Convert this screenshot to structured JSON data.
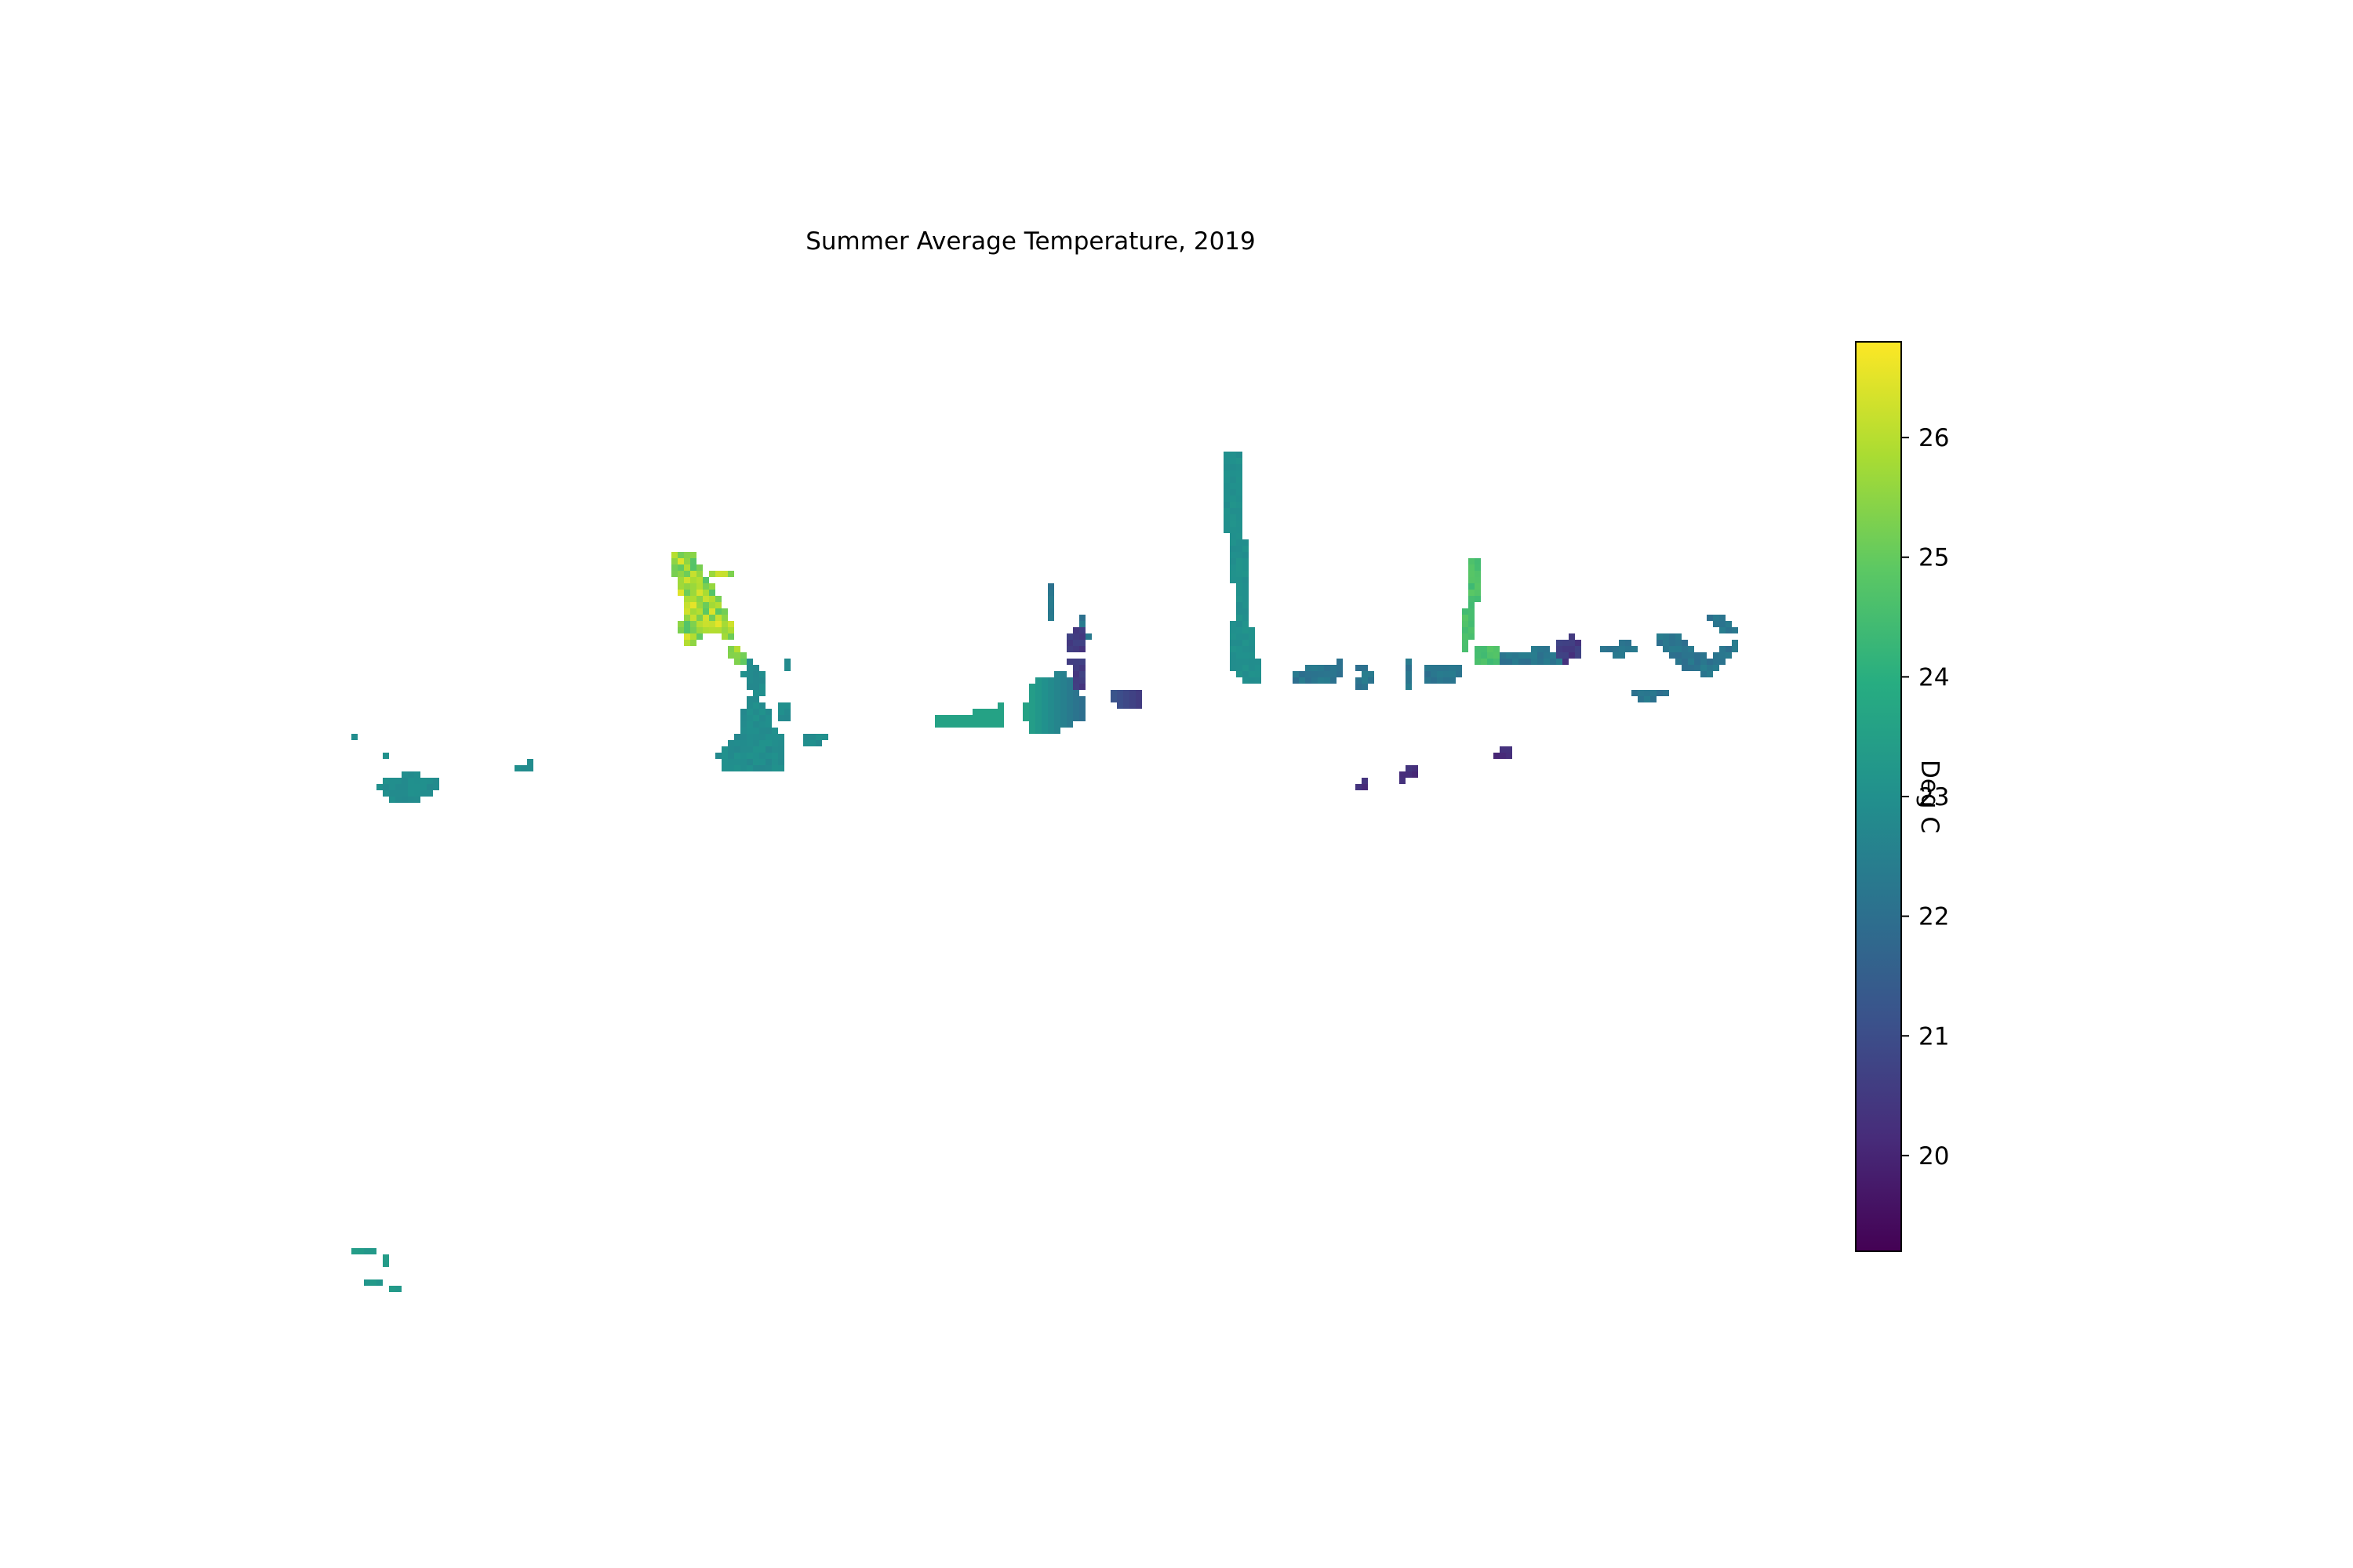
{
  "chart_data": {
    "type": "heatmap",
    "title": "Summer Average Temperature, 2019",
    "xlabel": "",
    "ylabel": "",
    "axes_visible": false,
    "colormap": "viridis",
    "colorbar": {
      "label": "Deg C",
      "range": [
        19.2,
        26.8
      ],
      "ticks": [
        20,
        21,
        22,
        23,
        24,
        25,
        26
      ],
      "placement": "right"
    },
    "regions": [
      {
        "id": "western-islands",
        "value_range": [
          22.6,
          23.2
        ],
        "mean": 22.9
      },
      {
        "id": "far-southwest-fragments",
        "value_range": [
          23.0,
          23.6
        ],
        "mean": 23.3
      },
      {
        "id": "northwest-hotspot",
        "value_range": [
          23.5,
          26.5
        ],
        "mean": 25.9
      },
      {
        "id": "northwest-main-body",
        "value_range": [
          22.6,
          23.3
        ],
        "mean": 22.9
      },
      {
        "id": "central-basin",
        "value_range": [
          20.4,
          23.6
        ],
        "mean": 21.8
      },
      {
        "id": "central-north-channel",
        "value_range": [
          22.8,
          23.3
        ],
        "mean": 23.0
      },
      {
        "id": "eastern-arm",
        "value_range": [
          21.6,
          22.6
        ],
        "mean": 22.2
      },
      {
        "id": "eastern-warm-inlet",
        "value_range": [
          24.0,
          25.0
        ],
        "mean": 24.6
      },
      {
        "id": "eastern-cold-pocket",
        "value_range": [
          20.0,
          21.0
        ],
        "mean": 20.5
      },
      {
        "id": "southeast-isolated",
        "value_range": [
          19.8,
          20.6
        ],
        "mean": 20.2
      }
    ]
  }
}
